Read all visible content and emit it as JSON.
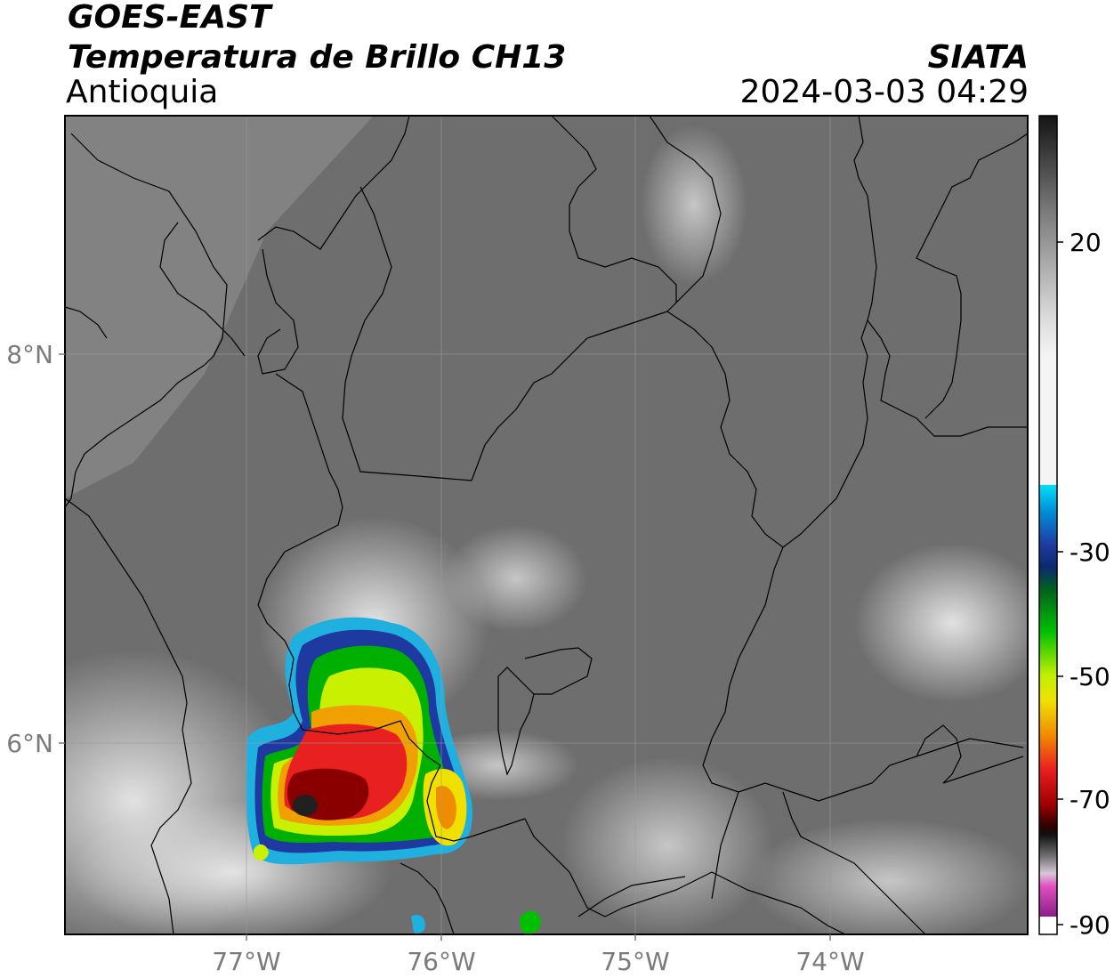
{
  "header": {
    "satellite": "GOES-EAST",
    "product": "Temperatura de Brillo CH13",
    "region": "Antioquia",
    "organization": "SIATA",
    "datetime": "2024-03-03 04:29"
  },
  "map": {
    "lat_labels": [
      "8°N",
      "6°N"
    ],
    "lon_labels": [
      "77°W",
      "76°W",
      "75°W",
      "74°W"
    ],
    "colors": {
      "frame": "#000000",
      "border": "#000000",
      "grid": "#9a9a9a",
      "cloud_gray": "#6e6e6e",
      "cloud_light": "#c9c9c9"
    }
  },
  "colorbar": {
    "tick_labels": [
      "20",
      "-30",
      "-50",
      "-70",
      "-90"
    ],
    "colors": {
      "warm_black": "#1a1a1a",
      "white": "#f4f4f4",
      "cyan": "#00c8f0",
      "blue": "#1e3aa0",
      "green": "#00b000",
      "yellow": "#f0f000",
      "orange": "#f08c00",
      "red": "#d21e1e",
      "dark_red": "#6e0000",
      "magenta": "#e14fc0",
      "purple": "#8a1e8a"
    }
  }
}
